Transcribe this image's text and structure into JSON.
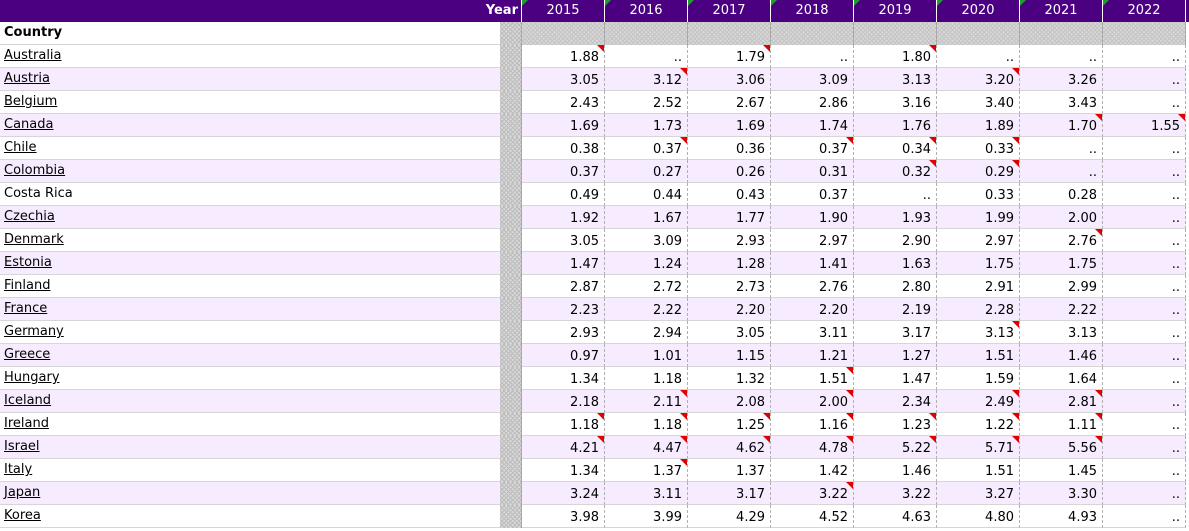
{
  "header": {
    "year_label": "Year",
    "years": [
      {
        "label": "2015",
        "flag": true
      },
      {
        "label": "2016",
        "flag": true
      },
      {
        "label": "2017",
        "flag": true
      },
      {
        "label": "2018",
        "flag": true
      },
      {
        "label": "2019",
        "flag": true
      },
      {
        "label": "2020",
        "flag": true
      },
      {
        "label": "2021",
        "flag": true
      },
      {
        "label": "2022",
        "flag": true
      }
    ],
    "country_label": "Country"
  },
  "colors": {
    "header_bg": "#4b0082",
    "alt_row_bg": "#f7ecff",
    "flag_red": "#e00000",
    "flag_green": "#1f9d2e"
  },
  "rows": [
    {
      "country": "Australia",
      "link": true,
      "values": [
        "1.88",
        "..",
        "1.79",
        "..",
        "1.80",
        "..",
        "..",
        ".."
      ],
      "flags": [
        1,
        0,
        1,
        0,
        1,
        0,
        0,
        0
      ]
    },
    {
      "country": "Austria",
      "link": true,
      "values": [
        "3.05",
        "3.12",
        "3.06",
        "3.09",
        "3.13",
        "3.20",
        "3.26",
        ".."
      ],
      "flags": [
        0,
        1,
        0,
        0,
        0,
        1,
        0,
        0
      ]
    },
    {
      "country": "Belgium",
      "link": true,
      "values": [
        "2.43",
        "2.52",
        "2.67",
        "2.86",
        "3.16",
        "3.40",
        "3.43",
        ".."
      ],
      "flags": [
        0,
        0,
        0,
        0,
        0,
        0,
        0,
        0
      ]
    },
    {
      "country": "Canada",
      "link": true,
      "values": [
        "1.69",
        "1.73",
        "1.69",
        "1.74",
        "1.76",
        "1.89",
        "1.70",
        "1.55"
      ],
      "flags": [
        0,
        0,
        0,
        0,
        0,
        0,
        1,
        1
      ]
    },
    {
      "country": "Chile",
      "link": true,
      "values": [
        "0.38",
        "0.37",
        "0.36",
        "0.37",
        "0.34",
        "0.33",
        "..",
        ".."
      ],
      "flags": [
        0,
        1,
        0,
        1,
        1,
        1,
        0,
        0
      ]
    },
    {
      "country": "Colombia",
      "link": true,
      "values": [
        "0.37",
        "0.27",
        "0.26",
        "0.31",
        "0.32",
        "0.29",
        "..",
        ".."
      ],
      "flags": [
        0,
        0,
        0,
        0,
        1,
        1,
        0,
        0
      ]
    },
    {
      "country": "Costa Rica",
      "link": false,
      "values": [
        "0.49",
        "0.44",
        "0.43",
        "0.37",
        "..",
        "0.33",
        "0.28",
        ".."
      ],
      "flags": [
        0,
        0,
        0,
        0,
        0,
        0,
        0,
        0
      ]
    },
    {
      "country": "Czechia",
      "link": true,
      "values": [
        "1.92",
        "1.67",
        "1.77",
        "1.90",
        "1.93",
        "1.99",
        "2.00",
        ".."
      ],
      "flags": [
        0,
        0,
        0,
        0,
        0,
        0,
        0,
        0
      ]
    },
    {
      "country": "Denmark",
      "link": true,
      "values": [
        "3.05",
        "3.09",
        "2.93",
        "2.97",
        "2.90",
        "2.97",
        "2.76",
        ".."
      ],
      "flags": [
        0,
        0,
        0,
        0,
        0,
        0,
        1,
        0
      ]
    },
    {
      "country": "Estonia",
      "link": true,
      "values": [
        "1.47",
        "1.24",
        "1.28",
        "1.41",
        "1.63",
        "1.75",
        "1.75",
        ".."
      ],
      "flags": [
        0,
        0,
        0,
        0,
        0,
        0,
        0,
        0
      ]
    },
    {
      "country": "Finland",
      "link": true,
      "values": [
        "2.87",
        "2.72",
        "2.73",
        "2.76",
        "2.80",
        "2.91",
        "2.99",
        ".."
      ],
      "flags": [
        0,
        0,
        0,
        0,
        0,
        0,
        0,
        0
      ]
    },
    {
      "country": "France",
      "link": true,
      "values": [
        "2.23",
        "2.22",
        "2.20",
        "2.20",
        "2.19",
        "2.28",
        "2.22",
        ".."
      ],
      "flags": [
        0,
        0,
        0,
        0,
        0,
        0,
        0,
        0
      ]
    },
    {
      "country": "Germany",
      "link": true,
      "values": [
        "2.93",
        "2.94",
        "3.05",
        "3.11",
        "3.17",
        "3.13",
        "3.13",
        ".."
      ],
      "flags": [
        0,
        0,
        0,
        0,
        0,
        1,
        0,
        0
      ]
    },
    {
      "country": "Greece",
      "link": true,
      "values": [
        "0.97",
        "1.01",
        "1.15",
        "1.21",
        "1.27",
        "1.51",
        "1.46",
        ".."
      ],
      "flags": [
        0,
        0,
        0,
        0,
        0,
        0,
        0,
        0
      ]
    },
    {
      "country": "Hungary",
      "link": true,
      "values": [
        "1.34",
        "1.18",
        "1.32",
        "1.51",
        "1.47",
        "1.59",
        "1.64",
        ".."
      ],
      "flags": [
        0,
        0,
        0,
        1,
        0,
        0,
        0,
        0
      ]
    },
    {
      "country": "Iceland",
      "link": true,
      "values": [
        "2.18",
        "2.11",
        "2.08",
        "2.00",
        "2.34",
        "2.49",
        "2.81",
        ".."
      ],
      "flags": [
        0,
        1,
        0,
        1,
        0,
        1,
        1,
        0
      ]
    },
    {
      "country": "Ireland",
      "link": true,
      "values": [
        "1.18",
        "1.18",
        "1.25",
        "1.16",
        "1.23",
        "1.22",
        "1.11",
        ".."
      ],
      "flags": [
        1,
        1,
        1,
        1,
        1,
        1,
        1,
        0
      ]
    },
    {
      "country": "Israel",
      "link": true,
      "values": [
        "4.21",
        "4.47",
        "4.62",
        "4.78",
        "5.22",
        "5.71",
        "5.56",
        ".."
      ],
      "flags": [
        1,
        1,
        1,
        1,
        1,
        1,
        1,
        0
      ]
    },
    {
      "country": "Italy",
      "link": true,
      "values": [
        "1.34",
        "1.37",
        "1.37",
        "1.42",
        "1.46",
        "1.51",
        "1.45",
        ".."
      ],
      "flags": [
        0,
        1,
        0,
        0,
        0,
        0,
        0,
        0
      ]
    },
    {
      "country": "Japan",
      "link": true,
      "values": [
        "3.24",
        "3.11",
        "3.17",
        "3.22",
        "3.22",
        "3.27",
        "3.30",
        ".."
      ],
      "flags": [
        0,
        0,
        0,
        1,
        0,
        0,
        0,
        0
      ]
    },
    {
      "country": "Korea",
      "link": true,
      "values": [
        "3.98",
        "3.99",
        "4.29",
        "4.52",
        "4.63",
        "4.80",
        "4.93",
        ".."
      ],
      "flags": [
        0,
        0,
        0,
        0,
        0,
        0,
        0,
        0
      ]
    }
  ]
}
